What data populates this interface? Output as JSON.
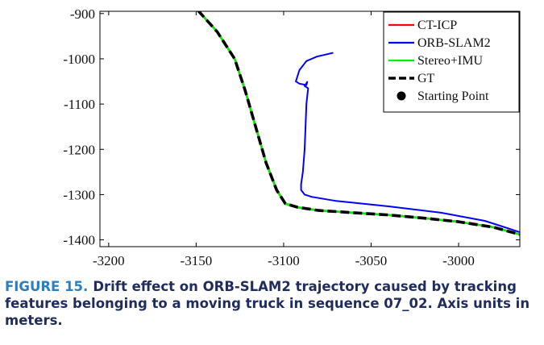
{
  "caption": {
    "label": "FIGURE 15.",
    "text": "Drift effect on ORB-SLAM2 trajectory caused by tracking features belonging to a moving truck in sequence 07_02. Axis units in meters."
  },
  "chart_data": {
    "type": "line",
    "title": "",
    "xlabel": "",
    "ylabel": "",
    "xlim": [
      -3205,
      -2965
    ],
    "ylim": [
      -1415,
      -895
    ],
    "xticks": [
      -3200,
      -3150,
      -3100,
      -3050,
      -3000
    ],
    "yticks": [
      -900,
      -1000,
      -1100,
      -1200,
      -1300,
      -1400
    ],
    "xtick_labels": [
      "-3200",
      "-3150",
      "-3100",
      "-3050",
      "-3000"
    ],
    "ytick_labels": [
      "-900",
      "-1000",
      "-1100",
      "-1200",
      "-1300",
      "-1400"
    ],
    "grid": false,
    "legend_position": "top-right",
    "series": [
      {
        "name": "CT-ICP",
        "color": "#ff0000",
        "style": "solid",
        "x": [
          -3149,
          -3138,
          -3128,
          -3122,
          -3116,
          -3110,
          -3104,
          -3099,
          -3092,
          -3080,
          -3060,
          -3040,
          -3020,
          -3000,
          -2980,
          -2965
        ],
        "y": [
          -893,
          -940,
          -1000,
          -1070,
          -1150,
          -1230,
          -1290,
          -1320,
          -1328,
          -1335,
          -1340,
          -1345,
          -1352,
          -1360,
          -1372,
          -1388
        ]
      },
      {
        "name": "ORB-SLAM2",
        "color": "#0000ff",
        "style": "solid",
        "x": [
          -3072,
          -3081,
          -3087,
          -3091,
          -3093,
          -3091,
          -3087,
          -3086.5,
          -3088,
          -3086,
          -3087,
          -3087.5,
          -3088,
          -3089,
          -3090,
          -3090,
          -3088,
          -3084,
          -3070,
          -3040,
          -3010,
          -2985,
          -2965
        ],
        "y": [
          -987,
          -995,
          -1005,
          -1025,
          -1050,
          -1055,
          -1058,
          -1051,
          -1060,
          -1065,
          -1100,
          -1150,
          -1200,
          -1250,
          -1277,
          -1290,
          -1300,
          -1305,
          -1314,
          -1326,
          -1340,
          -1358,
          -1383
        ]
      },
      {
        "name": "Stereo+IMU",
        "color": "#00ee00",
        "style": "solid",
        "x": [
          -3149,
          -3138,
          -3128,
          -3122,
          -3116,
          -3110,
          -3104,
          -3099,
          -3092,
          -3080,
          -3060,
          -3040,
          -3020,
          -3000,
          -2980,
          -2965
        ],
        "y": [
          -893,
          -940,
          -1000,
          -1070,
          -1150,
          -1230,
          -1290,
          -1320,
          -1328,
          -1335,
          -1340,
          -1345,
          -1352,
          -1360,
          -1372,
          -1388
        ]
      },
      {
        "name": "GT",
        "color": "#000000",
        "style": "dashed",
        "x": [
          -3149,
          -3138,
          -3128,
          -3122,
          -3116,
          -3110,
          -3104,
          -3099,
          -3092,
          -3080,
          -3060,
          -3040,
          -3020,
          -3000,
          -2980,
          -2965
        ],
        "y": [
          -893,
          -940,
          -1000,
          -1070,
          -1150,
          -1230,
          -1290,
          -1320,
          -1328,
          -1335,
          -1340,
          -1345,
          -1352,
          -1360,
          -1372,
          -1388
        ]
      }
    ],
    "markers": [
      {
        "name": "Starting Point",
        "color": "#000000"
      }
    ]
  }
}
